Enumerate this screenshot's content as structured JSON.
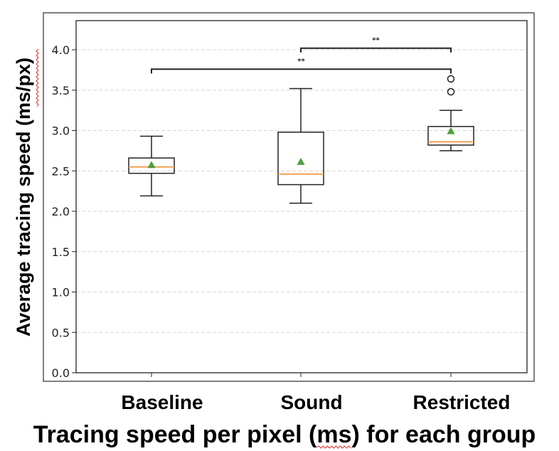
{
  "chart_data": {
    "type": "box",
    "title": "",
    "xlabel": "Tracing speed per pixel (ms) for each group",
    "xlabel_prefix": "Tracing speed per pixel (",
    "xlabel_underlined": "ms",
    "xlabel_suffix": ") for each group",
    "ylabel": "Average tracing speed (ms/px)",
    "ylabel_prefix": "Average tracing speed (",
    "ylabel_underlined": "ms/px",
    "ylabel_suffix": ")",
    "ylim": [
      0,
      4.37
    ],
    "yticks": [
      0.0,
      0.5,
      1.0,
      1.5,
      2.0,
      2.5,
      3.0,
      3.5,
      4.0
    ],
    "ytick_labels": [
      "0.0",
      "0.5",
      "1.0",
      "1.5",
      "2.0",
      "2.5",
      "3.0",
      "3.5",
      "4.0"
    ],
    "grid": "y-dashed",
    "categories": [
      "Baseline",
      "Sound",
      "Restricted"
    ],
    "series": [
      {
        "name": "Baseline",
        "whisker_low": 2.19,
        "q1": 2.47,
        "median": 2.55,
        "q3": 2.66,
        "whisker_high": 2.93,
        "mean": 2.57,
        "outliers": []
      },
      {
        "name": "Sound",
        "whisker_low": 2.1,
        "q1": 2.33,
        "median": 2.46,
        "q3": 2.98,
        "whisker_high": 3.52,
        "mean": 2.61,
        "outliers": []
      },
      {
        "name": "Restricted",
        "whisker_low": 2.75,
        "q1": 2.82,
        "median": 2.86,
        "q3": 3.05,
        "whisker_high": 3.25,
        "mean": 2.99,
        "outliers": [
          3.48,
          3.64
        ]
      }
    ],
    "significance": [
      {
        "from": "Sound",
        "to": "Restricted",
        "label": "**",
        "y": 4.02
      },
      {
        "from": "Baseline",
        "to": "Restricted",
        "label": "**",
        "y": 3.76
      }
    ],
    "colors": {
      "median": "#f0a050",
      "mean": "#4c9f3c",
      "box": "#222222"
    }
  }
}
